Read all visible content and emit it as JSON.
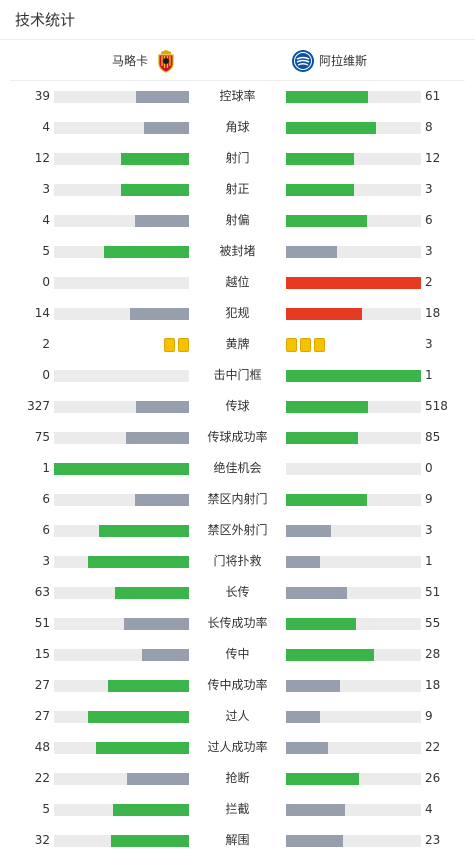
{
  "header": {
    "title": "技术统计"
  },
  "teams": {
    "home": {
      "name": "马略卡",
      "crest_icon": "mallorca-crest-icon",
      "color": "#c8102e"
    },
    "away": {
      "name": "阿拉维斯",
      "crest_icon": "alaves-crest-icon",
      "color": "#0a4fa3"
    }
  },
  "colors": {
    "leading": "#3bb54a",
    "trailing": "#979fae",
    "highlight": "#e63a23",
    "yellow_card": "#f5c100"
  },
  "stats": [
    {
      "label": "控球率",
      "home": "39",
      "away": "61",
      "home_share": 0.39,
      "away_share": 0.61
    },
    {
      "label": "角球",
      "home": "4",
      "away": "8",
      "home_share": 0.33,
      "away_share": 0.67
    },
    {
      "label": "射门",
      "home": "12",
      "away": "12",
      "home_share": 0.5,
      "away_share": 0.5
    },
    {
      "label": "射正",
      "home": "3",
      "away": "3",
      "home_share": 0.5,
      "away_share": 0.5
    },
    {
      "label": "射偏",
      "home": "4",
      "away": "6",
      "home_share": 0.4,
      "away_share": 0.6
    },
    {
      "label": "被封堵",
      "home": "5",
      "away": "3",
      "home_share": 0.63,
      "away_share": 0.38
    },
    {
      "label": "越位",
      "home": "0",
      "away": "2",
      "home_share": 0,
      "away_share": 1.0,
      "highlight": "away"
    },
    {
      "label": "犯规",
      "home": "14",
      "away": "18",
      "home_share": 0.44,
      "away_share": 0.56,
      "highlight": "away"
    },
    {
      "label": "黄牌",
      "home": "2",
      "away": "3",
      "cards": true,
      "home_cards": 2,
      "away_cards": 3
    },
    {
      "label": "击中门框",
      "home": "0",
      "away": "1",
      "home_share": 0,
      "away_share": 1.0
    },
    {
      "label": "传球",
      "home": "327",
      "away": "518",
      "home_share": 0.39,
      "away_share": 0.61
    },
    {
      "label": "传球成功率",
      "home": "75",
      "away": "85",
      "home_share": 0.47,
      "away_share": 0.53
    },
    {
      "label": "绝佳机会",
      "home": "1",
      "away": "0",
      "home_share": 1.0,
      "away_share": 0
    },
    {
      "label": "禁区内射门",
      "home": "6",
      "away": "9",
      "home_share": 0.4,
      "away_share": 0.6
    },
    {
      "label": "禁区外射门",
      "home": "6",
      "away": "3",
      "home_share": 0.67,
      "away_share": 0.33
    },
    {
      "label": "门将扑救",
      "home": "3",
      "away": "1",
      "home_share": 0.75,
      "away_share": 0.25
    },
    {
      "label": "长传",
      "home": "63",
      "away": "51",
      "home_share": 0.55,
      "away_share": 0.45
    },
    {
      "label": "长传成功率",
      "home": "51",
      "away": "55",
      "home_share": 0.48,
      "away_share": 0.52
    },
    {
      "label": "传中",
      "home": "15",
      "away": "28",
      "home_share": 0.35,
      "away_share": 0.65
    },
    {
      "label": "传中成功率",
      "home": "27",
      "away": "18",
      "home_share": 0.6,
      "away_share": 0.4
    },
    {
      "label": "过人",
      "home": "27",
      "away": "9",
      "home_share": 0.75,
      "away_share": 0.25
    },
    {
      "label": "过人成功率",
      "home": "48",
      "away": "22",
      "home_share": 0.69,
      "away_share": 0.31
    },
    {
      "label": "抢断",
      "home": "22",
      "away": "26",
      "home_share": 0.46,
      "away_share": 0.54
    },
    {
      "label": "拦截",
      "home": "5",
      "away": "4",
      "home_share": 0.56,
      "away_share": 0.44
    },
    {
      "label": "解围",
      "home": "32",
      "away": "23",
      "home_share": 0.58,
      "away_share": 0.42
    }
  ]
}
